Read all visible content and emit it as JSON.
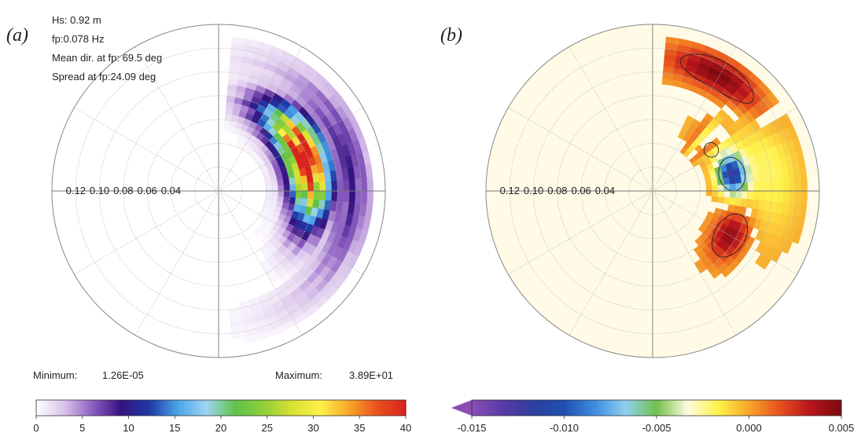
{
  "chart_data": [
    {
      "type": "heatmap",
      "subtype": "polar-directional-spectrum",
      "panel_label": "(a)",
      "stats": [
        "Hs: 0.92 m",
        "fp:0.078 Hz",
        "Mean dir. at fp: 69.5 deg",
        "Spread at fp:24.09 deg"
      ],
      "radial_tick_labels": [
        "0.12",
        "0.10",
        "0.08",
        "0.06",
        "0.04"
      ],
      "radial_ticks_hz": [
        0.12,
        0.1,
        0.08,
        0.06,
        0.04
      ],
      "r_range_hz": [
        0.0,
        0.14
      ],
      "angular_grid_deg": 30,
      "minimum_label": "Minimum:",
      "minimum_value": "1.26E-05",
      "maximum_label": "Maximum:",
      "maximum_value": "3.89E+01",
      "colorbar": {
        "range": [
          0,
          40
        ],
        "tick_values": [
          0,
          5,
          10,
          15,
          20,
          25,
          30,
          35,
          40
        ],
        "tick_labels": [
          "0",
          "5",
          "10",
          "15",
          "20",
          "25",
          "30",
          "35",
          "40"
        ],
        "colors": [
          "#ffffff",
          "#d9c2ea",
          "#8a5cc0",
          "#33127e",
          "#1f3aa6",
          "#4aa6e8",
          "#9fd4f2",
          "#5fc24a",
          "#8fcf3a",
          "#d8e030",
          "#fff24a",
          "#f7a62a",
          "#e8501e",
          "#d8241c"
        ]
      },
      "energy_region": {
        "dir_range_deg": [
          5,
          175
        ],
        "freq_range_hz": [
          0.04,
          0.13
        ],
        "peak_dir_deg": 69.5,
        "peak_freq_hz": 0.078
      }
    },
    {
      "type": "heatmap",
      "subtype": "polar-difference-spectrum",
      "panel_label": "(b)",
      "radial_tick_labels": [
        "0.12",
        "0.10",
        "0.08",
        "0.06",
        "0.04"
      ],
      "radial_ticks_hz": [
        0.12,
        0.1,
        0.08,
        0.06,
        0.04
      ],
      "r_range_hz": [
        0.0,
        0.14
      ],
      "angular_grid_deg": 30,
      "colorbar": {
        "range": [
          -0.015,
          0.005
        ],
        "tick_values": [
          -0.015,
          -0.01,
          -0.005,
          0.0,
          0.005
        ],
        "tick_labels": [
          "-0.015",
          "-0.010",
          "-0.005",
          "0.000",
          "0.005"
        ],
        "extend": "min",
        "colors": [
          "#8a4fb5",
          "#5a3aa6",
          "#2b3f9e",
          "#1f4fb0",
          "#3f8de0",
          "#8fd0ee",
          "#72c04a",
          "#fffbe0",
          "#fff24a",
          "#f7a62a",
          "#e8501e",
          "#b8141c",
          "#7a0a10"
        ]
      },
      "contour_levels": [
        0.0
      ]
    }
  ]
}
